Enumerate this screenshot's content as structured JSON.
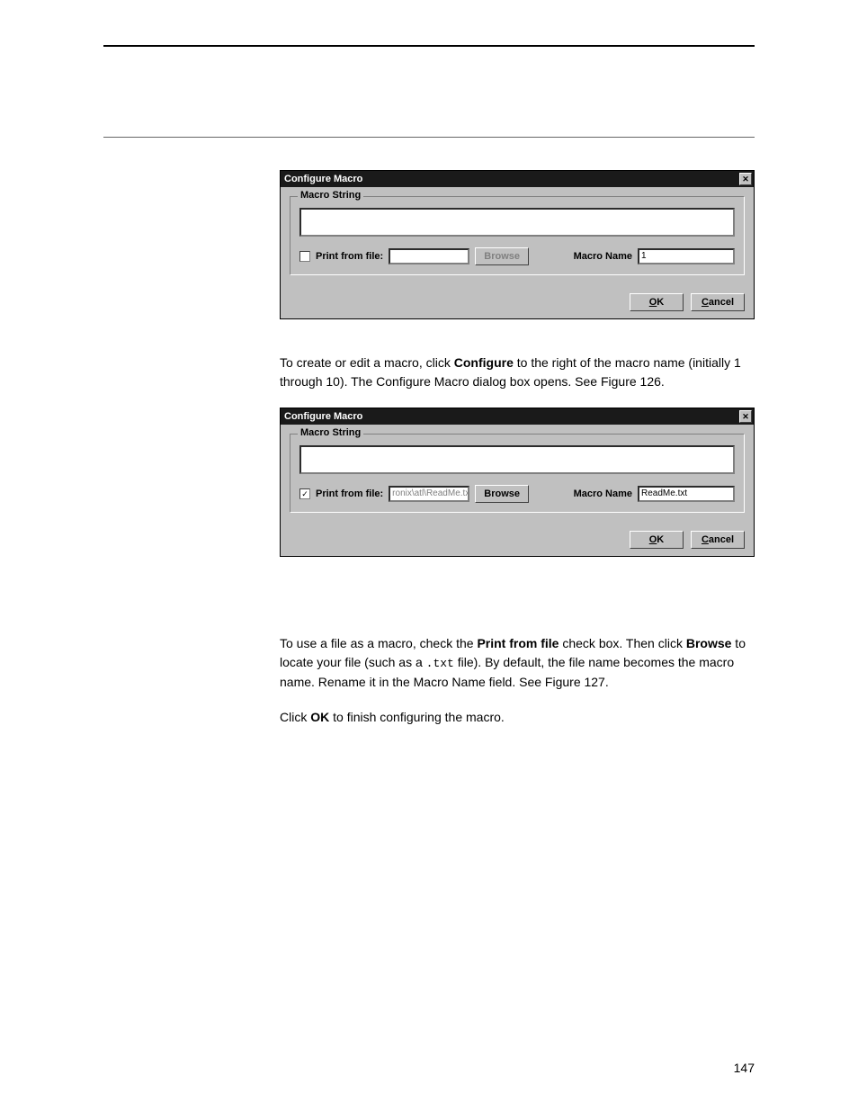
{
  "dialog1": {
    "title": "Configure Macro",
    "group_label": "Macro String",
    "print_from_file_checked": false,
    "print_from_file_label": "Print from file:",
    "file_value": "",
    "browse_label": "Browse",
    "browse_enabled": false,
    "macro_name_label": "Macro Name",
    "macro_name_value": "1",
    "ok_label": "OK",
    "cancel_label": "Cancel"
  },
  "para1": {
    "pre": "To create or edit a macro, click ",
    "bold1": "Configure",
    "post": " to the right of the macro name (initially 1 through 10). The Configure Macro dialog box opens. See Figure 126."
  },
  "dialog2": {
    "title": "Configure Macro",
    "group_label": "Macro String",
    "print_from_file_checked": true,
    "print_from_file_label": "Print from file:",
    "file_value": "ronix\\atl\\ReadMe.txt",
    "browse_label": "Browse",
    "browse_enabled": true,
    "macro_name_label": "Macro Name",
    "macro_name_value": "ReadMe.txt",
    "ok_label": "OK",
    "cancel_label": "Cancel"
  },
  "para2": {
    "t1": "To use a file as a macro, check the ",
    "b1": "Print from file",
    "t2": " check box. Then click ",
    "b2": "Browse",
    "t3": " to locate your file (such as a ",
    "m1": ".txt",
    "t4": " file). By default, the file name becomes the macro name. Rename it in the Macro Name field. See Figure 127."
  },
  "para3": {
    "t1": "Click ",
    "b1": "OK",
    "t2": " to finish configuring the macro."
  },
  "page_number": "147",
  "colors": {
    "dialog_bg": "#c0c0c0",
    "titlebar_bg": "#1a1a1a"
  }
}
